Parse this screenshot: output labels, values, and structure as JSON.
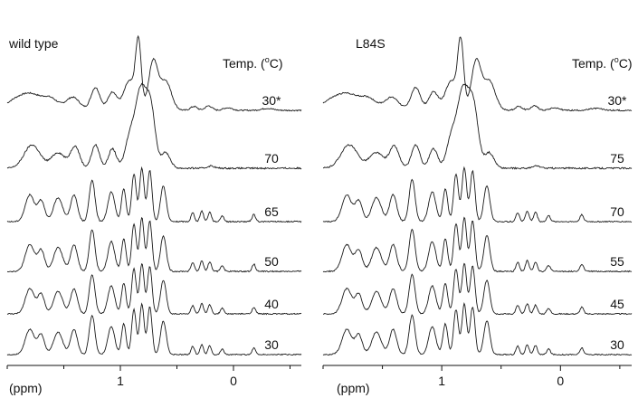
{
  "chart_data": [
    {
      "type": "line",
      "panel_title": "wild type",
      "temperature_header": "Temp. (oC)",
      "temperature_header_parts": {
        "before": "Temp. (",
        "sup": "o",
        "after": "C)"
      },
      "xlabel": "(ppm)",
      "x_tick_labels": [
        "1",
        "0"
      ],
      "x_ticks": [
        1,
        0
      ],
      "xlim": [
        2.0,
        -0.6
      ],
      "x_reversed": true,
      "series_labels": [
        "30*",
        "70",
        "65",
        "50",
        "40",
        "30"
      ],
      "series_order": "top-to-bottom",
      "spectra": [
        {
          "label": "30*",
          "peaks": [
            [
              1.92,
              0.16,
              0.09
            ],
            [
              1.78,
              0.2,
              0.08
            ],
            [
              1.62,
              0.18,
              0.07
            ],
            [
              1.42,
              0.2,
              0.06
            ],
            [
              1.22,
              0.35,
              0.04
            ],
            [
              1.07,
              0.28,
              0.04
            ],
            [
              0.92,
              0.45,
              0.05
            ],
            [
              0.84,
              1.0,
              0.025
            ],
            [
              0.71,
              0.75,
              0.04
            ],
            [
              0.6,
              0.45,
              0.05
            ],
            [
              0.35,
              0.06,
              0.03
            ],
            [
              0.22,
              0.07,
              0.03
            ],
            [
              0.05,
              0.04,
              0.04
            ],
            [
              -0.3,
              0.03,
              0.05
            ]
          ]
        },
        {
          "label": "70",
          "peaks": [
            [
              1.78,
              0.3,
              0.07
            ],
            [
              1.55,
              0.2,
              0.06
            ],
            [
              1.4,
              0.28,
              0.04
            ],
            [
              1.22,
              0.3,
              0.035
            ],
            [
              1.07,
              0.25,
              0.035
            ],
            [
              0.92,
              0.35,
              0.04
            ],
            [
              0.82,
              1.0,
              0.05
            ],
            [
              0.73,
              0.7,
              0.04
            ],
            [
              0.6,
              0.2,
              0.04
            ],
            [
              0.2,
              0.03,
              0.03
            ]
          ]
        },
        {
          "label": "65",
          "peaks": [
            [
              1.8,
              0.45,
              0.04
            ],
            [
              1.7,
              0.35,
              0.03
            ],
            [
              1.55,
              0.4,
              0.04
            ],
            [
              1.41,
              0.45,
              0.03
            ],
            [
              1.25,
              0.7,
              0.025
            ],
            [
              1.08,
              0.5,
              0.03
            ],
            [
              0.97,
              0.55,
              0.02
            ],
            [
              0.88,
              0.8,
              0.02
            ],
            [
              0.81,
              0.9,
              0.02
            ],
            [
              0.74,
              0.85,
              0.02
            ],
            [
              0.62,
              0.6,
              0.025
            ],
            [
              0.36,
              0.15,
              0.015
            ],
            [
              0.28,
              0.18,
              0.015
            ],
            [
              0.21,
              0.16,
              0.015
            ],
            [
              0.1,
              0.1,
              0.015
            ],
            [
              -0.18,
              0.12,
              0.015
            ]
          ]
        },
        {
          "label": "50",
          "peaks": [
            [
              1.8,
              0.45,
              0.04
            ],
            [
              1.7,
              0.35,
              0.03
            ],
            [
              1.55,
              0.4,
              0.04
            ],
            [
              1.41,
              0.45,
              0.03
            ],
            [
              1.25,
              0.7,
              0.025
            ],
            [
              1.08,
              0.5,
              0.03
            ],
            [
              0.97,
              0.55,
              0.02
            ],
            [
              0.88,
              0.8,
              0.02
            ],
            [
              0.81,
              0.9,
              0.02
            ],
            [
              0.74,
              0.85,
              0.02
            ],
            [
              0.62,
              0.6,
              0.025
            ],
            [
              0.36,
              0.15,
              0.015
            ],
            [
              0.28,
              0.18,
              0.015
            ],
            [
              0.21,
              0.16,
              0.015
            ],
            [
              0.1,
              0.1,
              0.015
            ],
            [
              -0.18,
              0.12,
              0.015
            ]
          ]
        },
        {
          "label": "40",
          "peaks": [
            [
              1.8,
              0.45,
              0.04
            ],
            [
              1.7,
              0.35,
              0.03
            ],
            [
              1.55,
              0.4,
              0.04
            ],
            [
              1.41,
              0.45,
              0.03
            ],
            [
              1.25,
              0.7,
              0.025
            ],
            [
              1.08,
              0.5,
              0.03
            ],
            [
              0.97,
              0.55,
              0.02
            ],
            [
              0.88,
              0.8,
              0.02
            ],
            [
              0.81,
              0.9,
              0.02
            ],
            [
              0.74,
              0.85,
              0.02
            ],
            [
              0.62,
              0.6,
              0.025
            ],
            [
              0.36,
              0.15,
              0.015
            ],
            [
              0.28,
              0.18,
              0.015
            ],
            [
              0.21,
              0.16,
              0.015
            ],
            [
              0.1,
              0.1,
              0.015
            ],
            [
              -0.18,
              0.12,
              0.015
            ]
          ]
        },
        {
          "label": "30",
          "peaks": [
            [
              1.8,
              0.45,
              0.04
            ],
            [
              1.7,
              0.35,
              0.03
            ],
            [
              1.55,
              0.4,
              0.04
            ],
            [
              1.41,
              0.45,
              0.03
            ],
            [
              1.25,
              0.7,
              0.025
            ],
            [
              1.08,
              0.5,
              0.03
            ],
            [
              0.97,
              0.55,
              0.02
            ],
            [
              0.88,
              0.8,
              0.02
            ],
            [
              0.81,
              0.9,
              0.02
            ],
            [
              0.74,
              0.85,
              0.02
            ],
            [
              0.62,
              0.6,
              0.025
            ],
            [
              0.36,
              0.15,
              0.015
            ],
            [
              0.28,
              0.18,
              0.015
            ],
            [
              0.21,
              0.16,
              0.015
            ],
            [
              0.1,
              0.1,
              0.015
            ],
            [
              -0.18,
              0.12,
              0.015
            ]
          ]
        }
      ],
      "line_color": "#1a1a1a"
    },
    {
      "type": "line",
      "panel_title": "L84S",
      "temperature_header": "Temp. (oC)",
      "temperature_header_parts": {
        "before": "Temp. (",
        "sup": "o",
        "after": "C)"
      },
      "xlabel": "(ppm)",
      "x_tick_labels": [
        "1",
        "0"
      ],
      "x_ticks": [
        1,
        0
      ],
      "xlim": [
        2.0,
        -0.6
      ],
      "x_reversed": true,
      "series_labels": [
        "30*",
        "75",
        "70",
        "55",
        "45",
        "30"
      ],
      "series_order": "top-to-bottom",
      "spectra": [
        {
          "label": "30*",
          "peaks": [
            [
              1.92,
              0.16,
              0.09
            ],
            [
              1.78,
              0.2,
              0.08
            ],
            [
              1.62,
              0.18,
              0.07
            ],
            [
              1.42,
              0.2,
              0.06
            ],
            [
              1.22,
              0.35,
              0.04
            ],
            [
              1.07,
              0.28,
              0.04
            ],
            [
              0.92,
              0.45,
              0.05
            ],
            [
              0.84,
              1.0,
              0.025
            ],
            [
              0.71,
              0.75,
              0.04
            ],
            [
              0.6,
              0.45,
              0.05
            ],
            [
              0.35,
              0.06,
              0.03
            ],
            [
              0.22,
              0.07,
              0.03
            ],
            [
              0.05,
              0.04,
              0.04
            ],
            [
              -0.3,
              0.03,
              0.05
            ]
          ]
        },
        {
          "label": "75",
          "peaks": [
            [
              1.78,
              0.3,
              0.07
            ],
            [
              1.55,
              0.2,
              0.06
            ],
            [
              1.4,
              0.28,
              0.04
            ],
            [
              1.22,
              0.3,
              0.035
            ],
            [
              1.07,
              0.25,
              0.035
            ],
            [
              0.92,
              0.35,
              0.04
            ],
            [
              0.82,
              1.0,
              0.05
            ],
            [
              0.73,
              0.7,
              0.04
            ],
            [
              0.6,
              0.2,
              0.04
            ],
            [
              0.2,
              0.03,
              0.03
            ]
          ]
        },
        {
          "label": "70",
          "peaks": [
            [
              1.8,
              0.45,
              0.04
            ],
            [
              1.7,
              0.35,
              0.03
            ],
            [
              1.55,
              0.4,
              0.04
            ],
            [
              1.41,
              0.45,
              0.03
            ],
            [
              1.25,
              0.7,
              0.025
            ],
            [
              1.08,
              0.5,
              0.03
            ],
            [
              0.97,
              0.55,
              0.02
            ],
            [
              0.88,
              0.8,
              0.02
            ],
            [
              0.81,
              0.9,
              0.02
            ],
            [
              0.74,
              0.85,
              0.02
            ],
            [
              0.62,
              0.6,
              0.025
            ],
            [
              0.36,
              0.15,
              0.015
            ],
            [
              0.28,
              0.18,
              0.015
            ],
            [
              0.21,
              0.16,
              0.015
            ],
            [
              0.1,
              0.1,
              0.015
            ],
            [
              -0.18,
              0.12,
              0.015
            ]
          ]
        },
        {
          "label": "55",
          "peaks": [
            [
              1.8,
              0.45,
              0.04
            ],
            [
              1.7,
              0.35,
              0.03
            ],
            [
              1.55,
              0.4,
              0.04
            ],
            [
              1.41,
              0.45,
              0.03
            ],
            [
              1.25,
              0.7,
              0.025
            ],
            [
              1.08,
              0.5,
              0.03
            ],
            [
              0.97,
              0.55,
              0.02
            ],
            [
              0.88,
              0.8,
              0.02
            ],
            [
              0.81,
              0.9,
              0.02
            ],
            [
              0.74,
              0.85,
              0.02
            ],
            [
              0.62,
              0.6,
              0.025
            ],
            [
              0.36,
              0.15,
              0.015
            ],
            [
              0.28,
              0.18,
              0.015
            ],
            [
              0.21,
              0.16,
              0.015
            ],
            [
              0.1,
              0.1,
              0.015
            ],
            [
              -0.18,
              0.12,
              0.015
            ]
          ]
        },
        {
          "label": "45",
          "peaks": [
            [
              1.8,
              0.45,
              0.04
            ],
            [
              1.7,
              0.35,
              0.03
            ],
            [
              1.55,
              0.4,
              0.04
            ],
            [
              1.41,
              0.45,
              0.03
            ],
            [
              1.25,
              0.7,
              0.025
            ],
            [
              1.08,
              0.5,
              0.03
            ],
            [
              0.97,
              0.55,
              0.02
            ],
            [
              0.88,
              0.8,
              0.02
            ],
            [
              0.81,
              0.9,
              0.02
            ],
            [
              0.74,
              0.85,
              0.02
            ],
            [
              0.62,
              0.6,
              0.025
            ],
            [
              0.36,
              0.15,
              0.015
            ],
            [
              0.28,
              0.18,
              0.015
            ],
            [
              0.21,
              0.16,
              0.015
            ],
            [
              0.1,
              0.1,
              0.015
            ],
            [
              -0.18,
              0.12,
              0.015
            ]
          ]
        },
        {
          "label": "30",
          "peaks": [
            [
              1.8,
              0.45,
              0.04
            ],
            [
              1.7,
              0.35,
              0.03
            ],
            [
              1.55,
              0.4,
              0.04
            ],
            [
              1.41,
              0.45,
              0.03
            ],
            [
              1.25,
              0.7,
              0.025
            ],
            [
              1.08,
              0.5,
              0.03
            ],
            [
              0.97,
              0.55,
              0.02
            ],
            [
              0.88,
              0.8,
              0.02
            ],
            [
              0.81,
              0.9,
              0.02
            ],
            [
              0.74,
              0.85,
              0.02
            ],
            [
              0.62,
              0.6,
              0.025
            ],
            [
              0.36,
              0.15,
              0.015
            ],
            [
              0.28,
              0.18,
              0.015
            ],
            [
              0.21,
              0.16,
              0.015
            ],
            [
              0.1,
              0.1,
              0.015
            ],
            [
              -0.18,
              0.12,
              0.015
            ]
          ]
        }
      ],
      "line_color": "#1a1a1a"
    }
  ]
}
